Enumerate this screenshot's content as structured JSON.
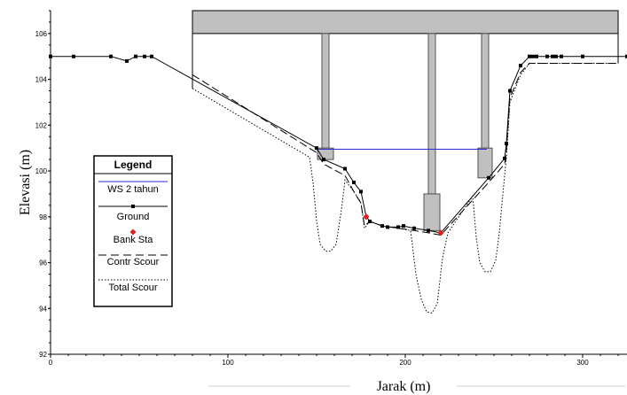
{
  "chart_data": {
    "type": "line",
    "xlabel": "Jarak (m)",
    "ylabel": "Elevasi (m)",
    "xlim": [
      0,
      325
    ],
    "ylim": [
      92,
      107
    ],
    "xticks": [
      0,
      100,
      200,
      300
    ],
    "yticks": [
      92,
      94,
      96,
      98,
      100,
      102,
      104,
      106
    ],
    "legend": {
      "title": "Legend",
      "placement": "middle-left",
      "entries": [
        "WS 2 tahun",
        "Ground",
        "Bank Sta",
        "Contr Scour",
        "Total Scour"
      ]
    },
    "colors": {
      "ws": "#2a2ad0",
      "ground": "#000000",
      "bank": "#e02020",
      "structure_fill": "#c0c0c0",
      "structure_edge": "#505050"
    },
    "series": [
      {
        "name": "WS 2 tahun",
        "x": [
          149,
          246
        ],
        "y": [
          100.95,
          100.95
        ]
      },
      {
        "name": "Ground",
        "x": [
          0,
          13,
          34,
          43,
          48,
          53,
          57,
          150,
          154,
          166,
          171,
          175,
          178,
          180,
          187,
          190,
          196,
          199,
          205,
          213,
          220,
          247,
          256,
          257,
          259,
          265,
          270,
          272,
          274,
          280,
          283,
          285,
          288,
          300,
          325
        ],
        "y": [
          105.0,
          105.0,
          105.0,
          104.8,
          105.0,
          105.0,
          105.0,
          101.0,
          100.5,
          100.1,
          99.5,
          99.1,
          98.0,
          97.8,
          97.6,
          97.55,
          97.55,
          97.6,
          97.5,
          97.4,
          97.3,
          99.7,
          100.55,
          101.2,
          103.5,
          104.6,
          105.0,
          105.0,
          105.0,
          105.0,
          105.0,
          105.0,
          105.0,
          105.0,
          105.0
        ]
      },
      {
        "name": "Bank Sta",
        "x": [
          178,
          220
        ],
        "y": [
          98.0,
          97.3
        ]
      },
      {
        "name": "Contr Scour",
        "x": [
          80,
          150,
          154,
          166,
          171,
          175,
          177,
          180,
          187,
          196,
          205,
          213,
          220,
          247,
          256,
          257,
          259,
          265,
          270,
          320
        ],
        "y": [
          104.2,
          100.8,
          100.3,
          99.8,
          99.1,
          98.6,
          97.6,
          97.8,
          97.6,
          97.5,
          97.4,
          97.3,
          97.2,
          99.5,
          100.3,
          100.9,
          103.2,
          104.3,
          104.7,
          104.7
        ]
      },
      {
        "name": "Total Scour",
        "x": [
          80,
          146,
          148,
          150,
          152,
          155,
          158,
          161,
          164,
          166,
          171,
          175,
          177,
          180,
          187,
          196,
          203,
          206,
          209,
          212,
          215,
          218,
          221,
          224,
          238,
          240,
          242,
          245,
          248,
          251,
          253,
          256,
          257,
          259,
          265,
          270,
          320
        ],
        "y": [
          103.6,
          100.6,
          99.5,
          97.8,
          96.8,
          96.5,
          96.5,
          96.8,
          98.3,
          99.6,
          99.1,
          98.6,
          97.5,
          97.8,
          97.6,
          97.5,
          97.4,
          95.5,
          94.4,
          93.85,
          93.8,
          94.2,
          96.2,
          97.3,
          98.9,
          97.1,
          96.0,
          95.6,
          95.6,
          96.1,
          97.3,
          99.8,
          100.6,
          103.0,
          104.2,
          104.7,
          104.7
        ]
      }
    ]
  }
}
